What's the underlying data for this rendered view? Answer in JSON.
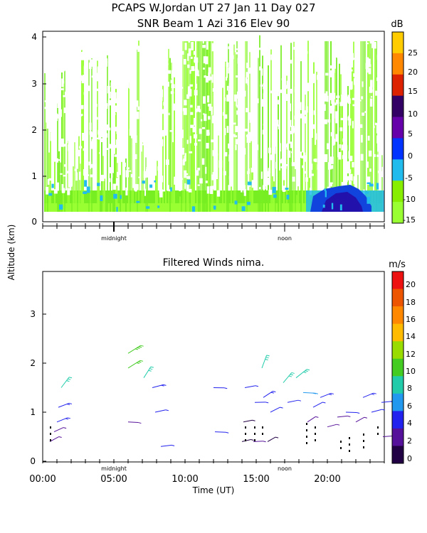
{
  "header": {
    "title_line1": "PCAPS W.Jordan UT  27 Jan 11 Day 027",
    "title_line2": "SNR Beam 1 Azi 316 Elev 90"
  },
  "colors": {
    "snr_fill_base": "#77ee22",
    "snr_fill_light": "#99ff33",
    "snr_mid": "#22bbee",
    "snr_strong": "#1144dd",
    "snr_strongest": "#2211aa"
  },
  "chart_data": [
    {
      "type": "heatmap",
      "title": "SNR Beam 1 Azi 316 Elev 90",
      "ylabel": "Altitude (km)",
      "ylim": [
        0,
        4.1
      ],
      "yticks": [
        "0",
        "1",
        "2",
        "3",
        "4"
      ],
      "time_markers": [
        "midnight",
        "noon"
      ],
      "colorbar": {
        "unit": "dB",
        "tick_labels": [
          "25",
          "20",
          "15",
          "10",
          "5",
          "0",
          "-5",
          "-10",
          "-15"
        ],
        "colors": [
          "#ffcc00",
          "#ff8800",
          "#dd2200",
          "#330066",
          "#6600aa",
          "#0033ff",
          "#22bbee",
          "#88ee00",
          "#99ff33"
        ]
      },
      "legend_position": "right"
    },
    {
      "type": "scatter",
      "title": "Filtered Winds nima.",
      "xlabel": "Time (UT)",
      "xlim": [
        0,
        24
      ],
      "xticks": [
        "00:00",
        "05:00",
        "10:00",
        "15:00",
        "20:00"
      ],
      "ylim": [
        0,
        3.9
      ],
      "yticks": [
        "0",
        "1",
        "2",
        "3"
      ],
      "time_markers": [
        "midnight",
        "noon"
      ],
      "colorbar": {
        "unit": "m/s",
        "tick_labels": [
          "20",
          "18",
          "16",
          "14",
          "12",
          "10",
          "8",
          "6",
          "4",
          "2",
          "0"
        ],
        "colors": [
          "#ee1111",
          "#ee5500",
          "#ff8800",
          "#ffbb00",
          "#99dd00",
          "#44cc22",
          "#22ccaa",
          "#2299ee",
          "#2222ee",
          "#551199",
          "#220044"
        ]
      },
      "legend_position": "right",
      "wind_barbs": [
        {
          "t": 0.5,
          "alt": 0.4,
          "speed": 3
        },
        {
          "t": 0.8,
          "alt": 0.6,
          "speed": 3
        },
        {
          "t": 1.0,
          "alt": 0.8,
          "speed": 5
        },
        {
          "t": 1.1,
          "alt": 1.1,
          "speed": 5
        },
        {
          "t": 1.3,
          "alt": 1.5,
          "speed": 8
        },
        {
          "t": 6.0,
          "alt": 0.8,
          "speed": 3
        },
        {
          "t": 6.0,
          "alt": 1.9,
          "speed": 10
        },
        {
          "t": 6.0,
          "alt": 2.2,
          "speed": 11
        },
        {
          "t": 7.1,
          "alt": 1.7,
          "speed": 8
        },
        {
          "t": 7.7,
          "alt": 1.5,
          "speed": 5
        },
        {
          "t": 7.9,
          "alt": 1.0,
          "speed": 4
        },
        {
          "t": 8.3,
          "alt": 0.3,
          "speed": 4
        },
        {
          "t": 12.0,
          "alt": 1.5,
          "speed": 4
        },
        {
          "t": 12.1,
          "alt": 0.6,
          "speed": 4
        },
        {
          "t": 14.0,
          "alt": 0.4,
          "speed": 1
        },
        {
          "t": 14.1,
          "alt": 0.8,
          "speed": 1
        },
        {
          "t": 14.2,
          "alt": 1.5,
          "speed": 4
        },
        {
          "t": 14.8,
          "alt": 0.4,
          "speed": 2
        },
        {
          "t": 14.9,
          "alt": 1.2,
          "speed": 4
        },
        {
          "t": 15.4,
          "alt": 1.9,
          "speed": 9
        },
        {
          "t": 15.5,
          "alt": 1.3,
          "speed": 5
        },
        {
          "t": 15.8,
          "alt": 0.4,
          "speed": 1
        },
        {
          "t": 16.0,
          "alt": 1.0,
          "speed": 4
        },
        {
          "t": 16.9,
          "alt": 1.6,
          "speed": 8
        },
        {
          "t": 17.2,
          "alt": 1.2,
          "speed": 4
        },
        {
          "t": 17.8,
          "alt": 1.7,
          "speed": 9
        },
        {
          "t": 18.3,
          "alt": 1.4,
          "speed": 6
        },
        {
          "t": 18.6,
          "alt": 0.8,
          "speed": 2
        },
        {
          "t": 19.0,
          "alt": 1.1,
          "speed": 4
        },
        {
          "t": 19.5,
          "alt": 1.3,
          "speed": 5
        },
        {
          "t": 20.0,
          "alt": 0.7,
          "speed": 2
        },
        {
          "t": 20.7,
          "alt": 0.9,
          "speed": 3
        },
        {
          "t": 21.3,
          "alt": 1.0,
          "speed": 4
        },
        {
          "t": 22.0,
          "alt": 0.8,
          "speed": 2
        },
        {
          "t": 22.5,
          "alt": 1.3,
          "speed": 5
        },
        {
          "t": 23.1,
          "alt": 1.0,
          "speed": 4
        },
        {
          "t": 23.8,
          "alt": 1.2,
          "speed": 5
        },
        {
          "t": 23.9,
          "alt": 0.5,
          "speed": 2
        }
      ]
    }
  ],
  "shared": {
    "ylabel": "Altitude (km)"
  }
}
